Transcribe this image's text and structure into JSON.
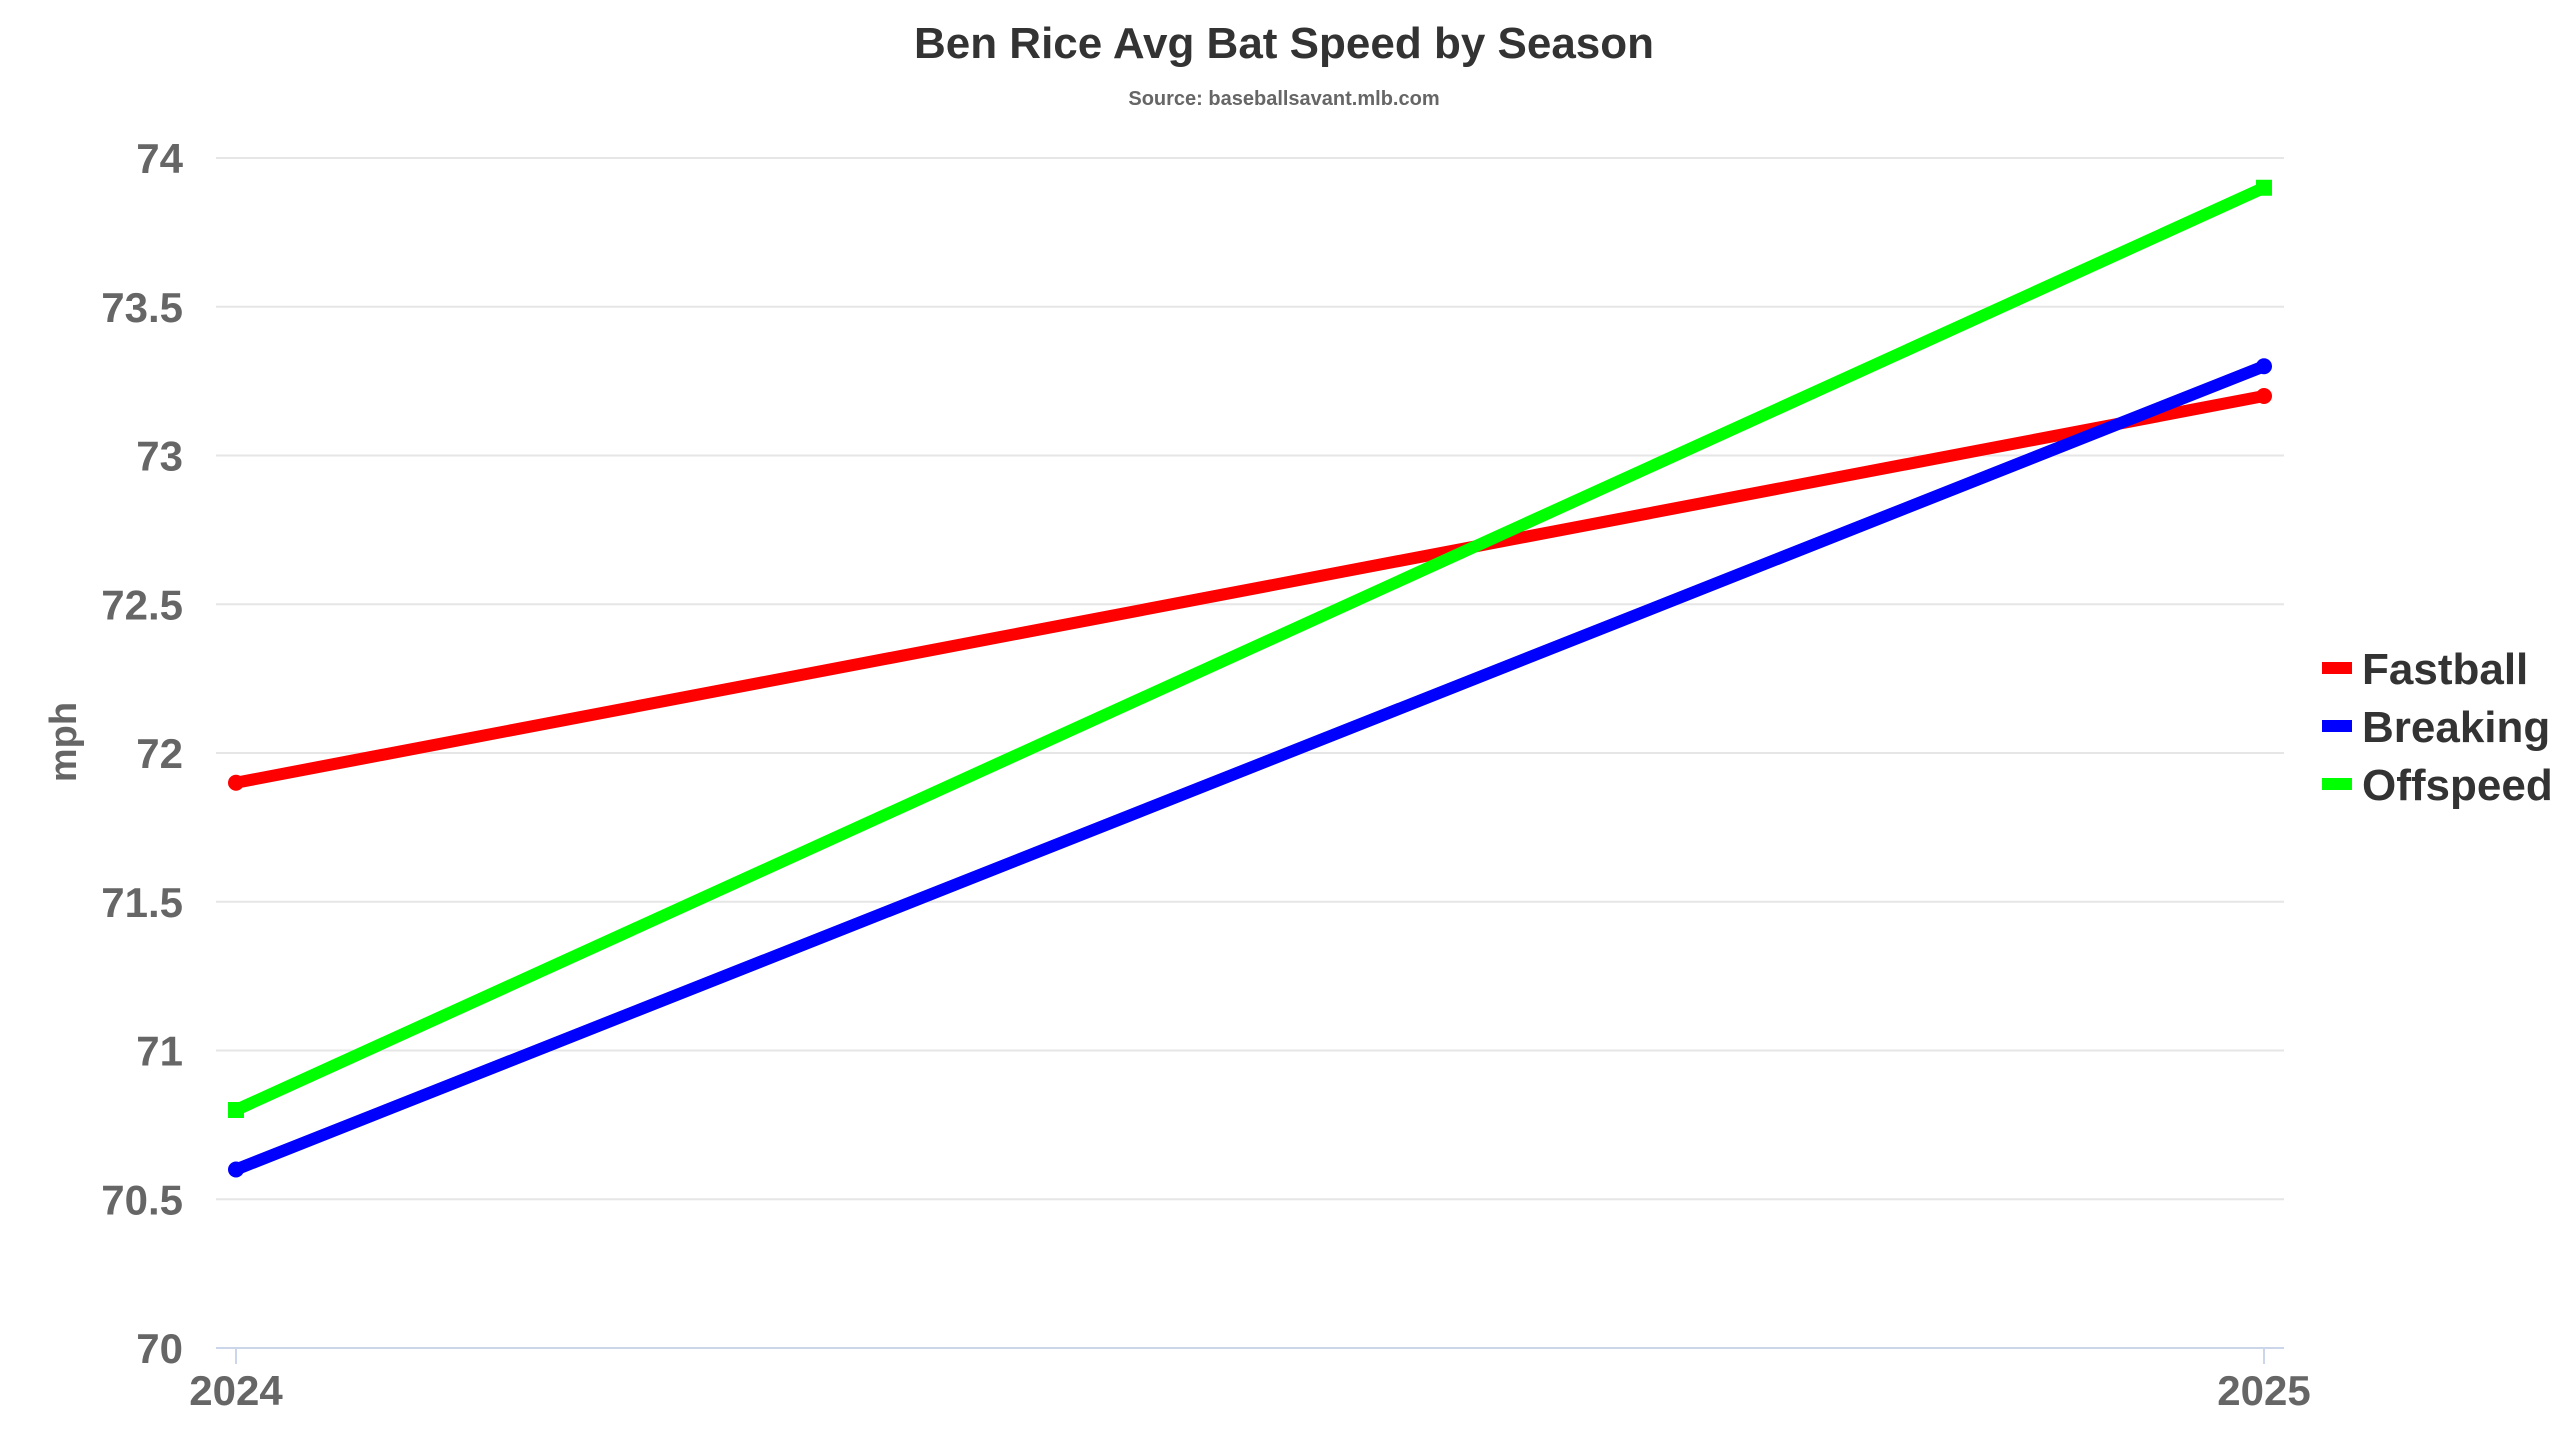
{
  "chart_data": {
    "type": "line",
    "title": "Ben Rice Avg Bat Speed by Season",
    "subtitle": "Source: baseballsavant.mlb.com",
    "xlabel": "",
    "ylabel": "mph",
    "categories": [
      "2024",
      "2025"
    ],
    "y_ticks": [
      "70",
      "70.5",
      "71",
      "71.5",
      "72",
      "72.5",
      "73",
      "73.5",
      "74"
    ],
    "ylim": [
      70,
      74
    ],
    "grid": true,
    "legend_position": "right",
    "series": [
      {
        "name": "Fastball",
        "values": [
          71.9,
          73.2
        ],
        "color": "#ff0000"
      },
      {
        "name": "Breaking",
        "values": [
          70.6,
          73.3
        ],
        "color": "#0000ff"
      },
      {
        "name": "Offspeed",
        "values": [
          70.8,
          73.9
        ],
        "color": "#00ff00"
      }
    ]
  }
}
